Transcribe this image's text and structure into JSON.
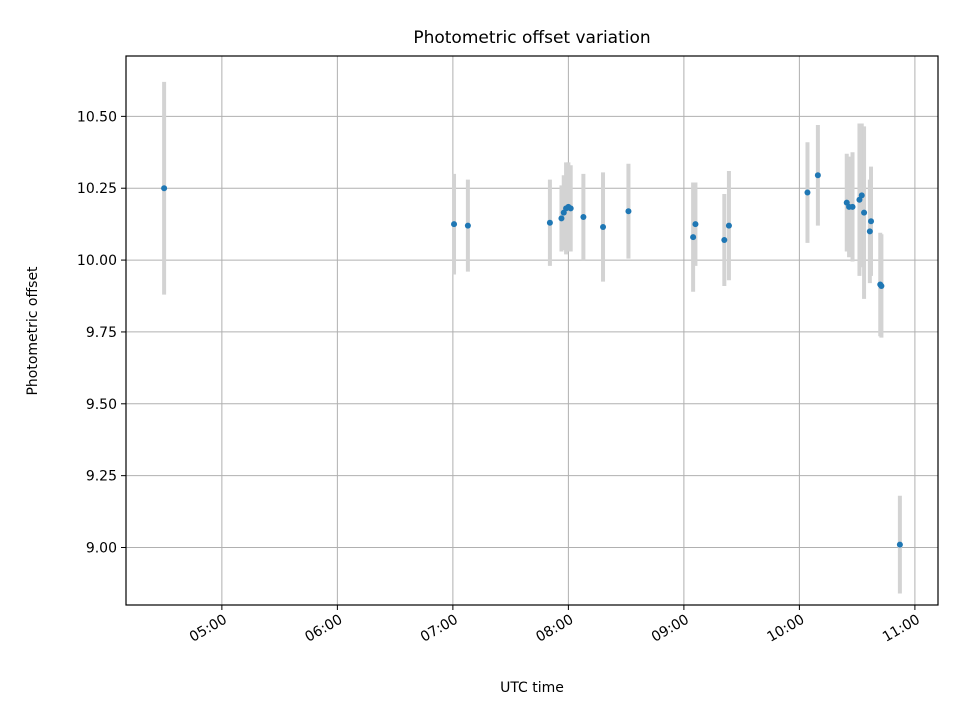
{
  "chart_data": {
    "type": "scatter",
    "title": "Photometric offset variation",
    "xlabel": "UTC time",
    "ylabel": "Photometric offset",
    "x_unit": "hours (UTC)",
    "xlim": [
      4.17,
      11.2
    ],
    "ylim": [
      8.8,
      10.71
    ],
    "x_ticks": [
      {
        "value": 5,
        "label": "05:00"
      },
      {
        "value": 6,
        "label": "06:00"
      },
      {
        "value": 7,
        "label": "07:00"
      },
      {
        "value": 8,
        "label": "08:00"
      },
      {
        "value": 9,
        "label": "09:00"
      },
      {
        "value": 10,
        "label": "10:00"
      },
      {
        "value": 11,
        "label": "11:00"
      }
    ],
    "y_ticks": [
      {
        "value": 9.0,
        "label": "9.00"
      },
      {
        "value": 9.25,
        "label": "9.25"
      },
      {
        "value": 9.5,
        "label": "9.50"
      },
      {
        "value": 9.75,
        "label": "9.75"
      },
      {
        "value": 10.0,
        "label": "10.00"
      },
      {
        "value": 10.25,
        "label": "10.25"
      },
      {
        "value": 10.5,
        "label": "10.50"
      }
    ],
    "grid": true,
    "marker_color": "#1f77b4",
    "errorbar_color": "#d3d3d3",
    "points": [
      {
        "x": 4.5,
        "y": 10.25,
        "err": 0.37
      },
      {
        "x": 7.01,
        "y": 10.125,
        "err": 0.175
      },
      {
        "x": 7.13,
        "y": 10.12,
        "err": 0.16
      },
      {
        "x": 7.84,
        "y": 10.13,
        "err": 0.15
      },
      {
        "x": 7.94,
        "y": 10.145,
        "err": 0.115
      },
      {
        "x": 7.96,
        "y": 10.165,
        "err": 0.13
      },
      {
        "x": 7.98,
        "y": 10.18,
        "err": 0.16
      },
      {
        "x": 8.0,
        "y": 10.185,
        "err": 0.155
      },
      {
        "x": 8.02,
        "y": 10.18,
        "err": 0.15
      },
      {
        "x": 8.13,
        "y": 10.15,
        "err": 0.15
      },
      {
        "x": 8.3,
        "y": 10.115,
        "err": 0.19
      },
      {
        "x": 8.52,
        "y": 10.17,
        "err": 0.165
      },
      {
        "x": 9.08,
        "y": 10.08,
        "err": 0.19
      },
      {
        "x": 9.1,
        "y": 10.125,
        "err": 0.145
      },
      {
        "x": 9.35,
        "y": 10.07,
        "err": 0.16
      },
      {
        "x": 9.39,
        "y": 10.12,
        "err": 0.19
      },
      {
        "x": 10.07,
        "y": 10.235,
        "err": 0.175
      },
      {
        "x": 10.16,
        "y": 10.295,
        "err": 0.175
      },
      {
        "x": 10.41,
        "y": 10.2,
        "err": 0.17
      },
      {
        "x": 10.43,
        "y": 10.185,
        "err": 0.175
      },
      {
        "x": 10.46,
        "y": 10.185,
        "err": 0.19
      },
      {
        "x": 10.52,
        "y": 10.21,
        "err": 0.265
      },
      {
        "x": 10.54,
        "y": 10.225,
        "err": 0.25
      },
      {
        "x": 10.56,
        "y": 10.165,
        "err": 0.3
      },
      {
        "x": 10.61,
        "y": 10.1,
        "err": 0.18
      },
      {
        "x": 10.62,
        "y": 10.135,
        "err": 0.19
      },
      {
        "x": 10.7,
        "y": 9.915,
        "err": 0.18
      },
      {
        "x": 10.71,
        "y": 9.91,
        "err": 0.18
      },
      {
        "x": 10.87,
        "y": 9.01,
        "err": 0.17
      }
    ]
  }
}
